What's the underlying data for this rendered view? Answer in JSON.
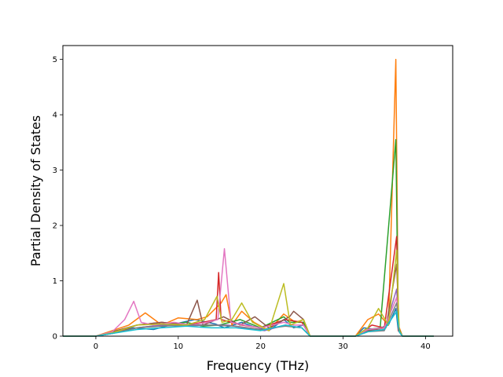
{
  "chart_data": {
    "type": "line",
    "title": "",
    "xlabel": "Frequency (THz)",
    "ylabel": "Partial Density of States",
    "xlim": [
      -4.0,
      43.3
    ],
    "ylim": [
      0,
      5.25
    ],
    "xticks": [
      0,
      10,
      20,
      30,
      40
    ],
    "yticks": [
      0,
      1,
      2,
      3,
      4,
      5
    ],
    "xtick_labels": [
      "0",
      "10",
      "20",
      "30",
      "40"
    ],
    "ytick_labels": [
      "0",
      "1",
      "2",
      "3",
      "4",
      "5"
    ],
    "grid": false,
    "legend": "none",
    "colors": [
      "#1f77b4",
      "#ff7f0e",
      "#2ca02c",
      "#d62728",
      "#9467bd",
      "#8c564b",
      "#e377c2",
      "#7f7f7f",
      "#bcbd22",
      "#17becf"
    ],
    "series": [
      {
        "color": "#1f77b4",
        "x": [
          -4,
          0,
          2,
          4.5,
          7,
          9,
          12,
          14.5,
          15.6,
          17.7,
          19,
          21,
          22.8,
          24,
          25.2,
          26,
          31.5,
          32.5,
          34,
          35.5,
          36.4,
          36.7,
          37.2,
          41
        ],
        "y": [
          0,
          0,
          0.08,
          0.15,
          0.12,
          0.2,
          0.3,
          0.22,
          0.15,
          0.25,
          0.18,
          0.1,
          0.3,
          0.15,
          0.2,
          0,
          0,
          0.15,
          0.12,
          0.2,
          0.5,
          0.1,
          0,
          0
        ]
      },
      {
        "color": "#ff7f0e",
        "x": [
          -4,
          0,
          2,
          4,
          6,
          8,
          10,
          12.3,
          13.5,
          15.2,
          15.8,
          16.5,
          17.7,
          19.2,
          21,
          22.8,
          24.2,
          25.2,
          26,
          31.5,
          33,
          34.3,
          35.5,
          36.4,
          36.7,
          37.2,
          41
        ],
        "y": [
          0,
          0,
          0.1,
          0.2,
          0.42,
          0.2,
          0.33,
          0.3,
          0.35,
          0.6,
          0.75,
          0.2,
          0.45,
          0.25,
          0.1,
          0.4,
          0.25,
          0.3,
          0,
          0,
          0.3,
          0.4,
          0.2,
          5.0,
          0.2,
          0,
          0
        ]
      },
      {
        "color": "#2ca02c",
        "x": [
          -4,
          0,
          2,
          5,
          8,
          11,
          13,
          15,
          17.5,
          20,
          22.8,
          23.5,
          25.2,
          26,
          31.5,
          33,
          34.5,
          36.4,
          36.7,
          37.2,
          41
        ],
        "y": [
          0,
          0,
          0.06,
          0.15,
          0.2,
          0.25,
          0.18,
          0.2,
          0.3,
          0.15,
          0.35,
          0.25,
          0.25,
          0,
          0,
          0.12,
          0.15,
          3.55,
          0.15,
          0,
          0
        ]
      },
      {
        "color": "#d62728",
        "x": [
          -4,
          0,
          2,
          5,
          8,
          11,
          13,
          14.6,
          14.9,
          15.2,
          17.7,
          20,
          23,
          25,
          26,
          31.5,
          33.5,
          35,
          36.5,
          36.7,
          37.2,
          41
        ],
        "y": [
          0,
          0,
          0.05,
          0.2,
          0.25,
          0.2,
          0.25,
          0.3,
          1.15,
          0.3,
          0.2,
          0.15,
          0.3,
          0.25,
          0,
          0,
          0.2,
          0.15,
          1.8,
          0.1,
          0,
          0
        ]
      },
      {
        "color": "#9467bd",
        "x": [
          -4,
          0,
          2,
          5,
          8,
          11,
          13,
          16,
          18,
          20.5,
          23,
          25,
          26,
          31.5,
          33,
          35,
          36.5,
          36.8,
          37.2,
          41
        ],
        "y": [
          0,
          0,
          0.05,
          0.15,
          0.2,
          0.18,
          0.2,
          0.2,
          0.15,
          0.1,
          0.2,
          0.15,
          0,
          0,
          0.1,
          0.1,
          0.85,
          0.1,
          0,
          0
        ]
      },
      {
        "color": "#8c564b",
        "x": [
          -4,
          0,
          2,
          5,
          8,
          11,
          12.3,
          13,
          15.5,
          17.5,
          19.3,
          21,
          23.5,
          24,
          25.2,
          26,
          31.5,
          33,
          35.2,
          36.5,
          36.8,
          37.2,
          41
        ],
        "y": [
          0,
          0,
          0.08,
          0.2,
          0.25,
          0.2,
          0.65,
          0.2,
          0.35,
          0.2,
          0.35,
          0.15,
          0.35,
          0.45,
          0.3,
          0,
          0,
          0.1,
          0.15,
          1.3,
          0.1,
          0,
          0
        ]
      },
      {
        "color": "#e377c2",
        "x": [
          -4,
          0,
          2,
          3.5,
          4.6,
          5.5,
          7,
          9.5,
          11.5,
          13.5,
          14.8,
          15.6,
          16.4,
          18,
          20,
          22.8,
          24,
          25.2,
          26,
          31.5,
          33,
          35,
          36.5,
          36.8,
          37.2,
          41
        ],
        "y": [
          0,
          0,
          0.08,
          0.3,
          0.63,
          0.25,
          0.2,
          0.25,
          0.2,
          0.25,
          0.3,
          1.58,
          0.25,
          0.2,
          0.15,
          0.25,
          0.2,
          0.2,
          0,
          0,
          0.12,
          0.15,
          0.7,
          0.1,
          0,
          0
        ]
      },
      {
        "color": "#7f7f7f",
        "x": [
          -4,
          0,
          2,
          5,
          8,
          11,
          14,
          17,
          20,
          23,
          25,
          26,
          31.5,
          33,
          35,
          36.5,
          36.8,
          37.2,
          41
        ],
        "y": [
          0,
          0,
          0.05,
          0.15,
          0.18,
          0.2,
          0.2,
          0.18,
          0.12,
          0.18,
          0.15,
          0,
          0,
          0.08,
          0.1,
          0.6,
          0.1,
          0,
          0
        ]
      },
      {
        "color": "#bcbd22",
        "x": [
          -4,
          0,
          2,
          5,
          8,
          11,
          13.2,
          14.7,
          15.3,
          16.5,
          17.7,
          19,
          21,
          22.8,
          23.6,
          25.2,
          26,
          31.5,
          33,
          34.3,
          35.5,
          36.5,
          36.8,
          37.2,
          41
        ],
        "y": [
          0,
          0,
          0.06,
          0.2,
          0.22,
          0.2,
          0.3,
          0.72,
          0.25,
          0.3,
          0.6,
          0.25,
          0.1,
          0.95,
          0.2,
          0.3,
          0,
          0,
          0.15,
          0.5,
          0.2,
          1.55,
          0.1,
          0,
          0
        ]
      },
      {
        "color": "#17becf",
        "x": [
          -4,
          0,
          2,
          5,
          8,
          11,
          14,
          17,
          20,
          23,
          25,
          26,
          31.5,
          33,
          35,
          36.5,
          36.8,
          37.2,
          41
        ],
        "y": [
          0,
          0,
          0.05,
          0.12,
          0.15,
          0.18,
          0.15,
          0.15,
          0.1,
          0.2,
          0.15,
          0,
          0,
          0.08,
          0.12,
          0.45,
          0.08,
          0,
          0
        ]
      }
    ]
  }
}
